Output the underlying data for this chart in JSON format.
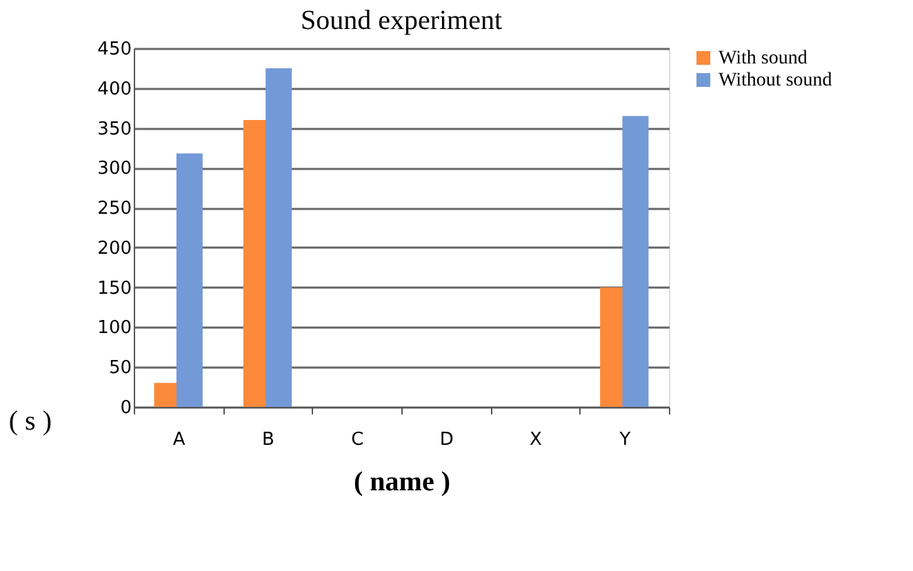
{
  "chart_data": {
    "type": "bar",
    "title": "Sound experiment",
    "xlabel": "( name )",
    "ylabel": "( s )",
    "categories": [
      "A",
      "B",
      "C",
      "D",
      "X",
      "Y"
    ],
    "series": [
      {
        "name": "With sound",
        "color": "#fd8a3a",
        "values": [
          30,
          360,
          0,
          0,
          0,
          150
        ]
      },
      {
        "name": "Without sound",
        "color": "#7399d7",
        "values": [
          318,
          425,
          0,
          0,
          0,
          365
        ]
      }
    ],
    "ylim": [
      0,
      450
    ],
    "yticks": [
      0,
      50,
      100,
      150,
      200,
      250,
      300,
      350,
      400,
      450
    ],
    "grid": "y",
    "legend": "right"
  }
}
